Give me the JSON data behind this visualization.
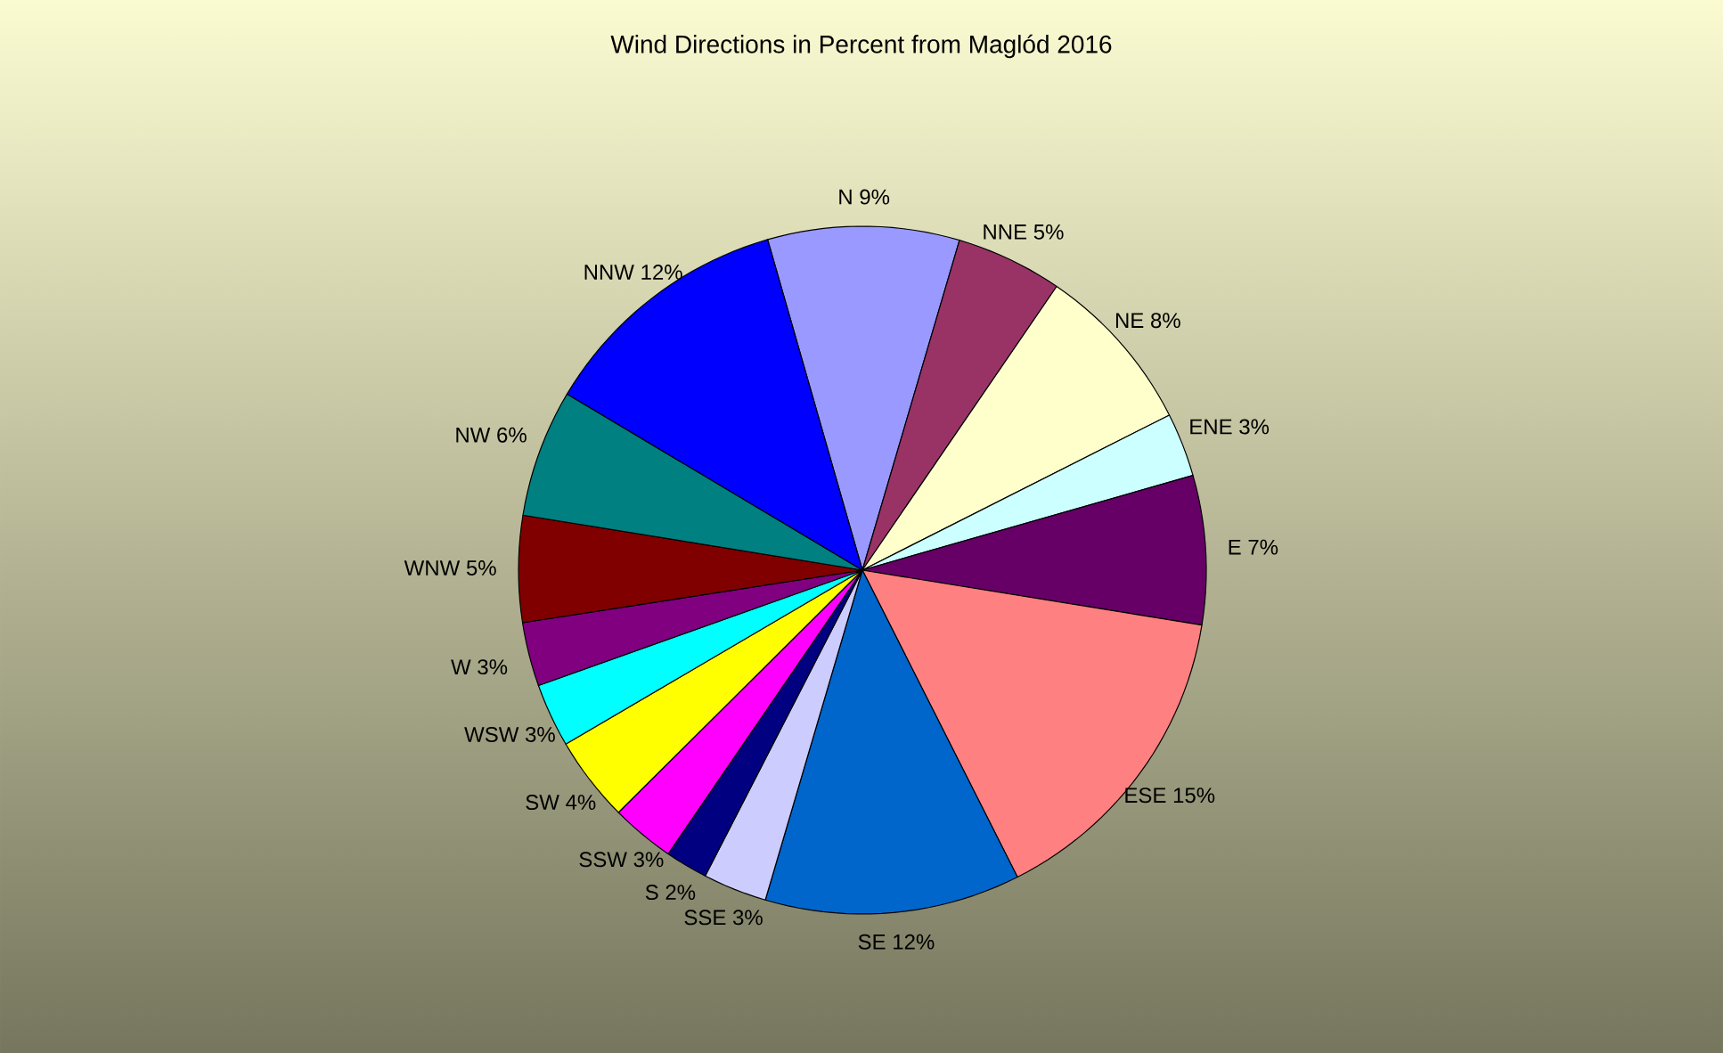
{
  "chart_data": {
    "type": "pie",
    "title": "Wind Directions in Percent from Maglód 2016",
    "categories": [
      "N",
      "NNE",
      "NE",
      "ENE",
      "E",
      "ESE",
      "SE",
      "SSE",
      "S",
      "SSW",
      "SW",
      "WSW",
      "W",
      "WNW",
      "NW",
      "NNW"
    ],
    "values": [
      9,
      5,
      8,
      3,
      7,
      15,
      12,
      3,
      2,
      3,
      4,
      3,
      3,
      5,
      6,
      12
    ],
    "value_labels": [
      "9%",
      "5%",
      "8%",
      "3%",
      "7%",
      "15%",
      "12%",
      "3%",
      "2%",
      "3%",
      "4%",
      "3%",
      "3%",
      "5%",
      "6%",
      "12%"
    ],
    "colors": [
      "#9999ff",
      "#993366",
      "#ffffcc",
      "#ccffff",
      "#660066",
      "#ff8080",
      "#0066cc",
      "#ccccff",
      "#000080",
      "#ff00ff",
      "#ffff00",
      "#00ffff",
      "#800080",
      "#800000",
      "#008080",
      "#0000ff"
    ]
  }
}
